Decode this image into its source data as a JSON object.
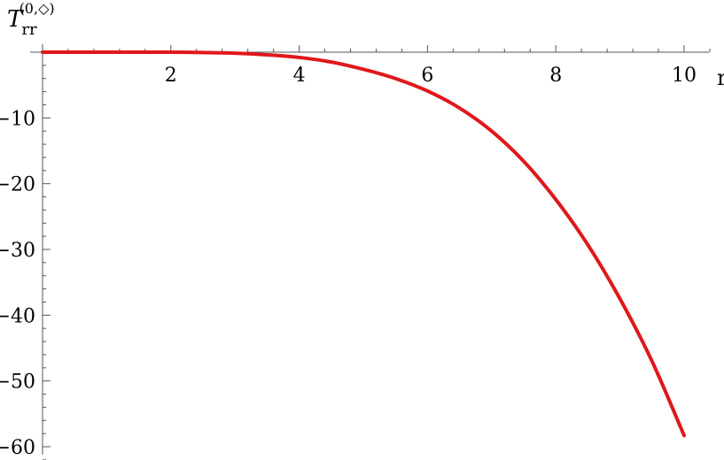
{
  "chart_data": {
    "type": "line",
    "title": "",
    "xlabel": "r",
    "ylabel": {
      "base": "T",
      "subscript": "rr",
      "superscript": "(0,◇)"
    },
    "xlim": [
      0,
      10
    ],
    "ylim": [
      -60,
      0
    ],
    "x_ticks": [
      2,
      4,
      6,
      8,
      10
    ],
    "y_ticks": [
      -10,
      -20,
      -30,
      -40,
      -50,
      -60
    ],
    "grid": false,
    "legend": "none",
    "series": [
      {
        "color": "#e0181b",
        "x": [
          0,
          0.5,
          1,
          1.5,
          2,
          2.5,
          3,
          3.5,
          4,
          4.5,
          5,
          5.5,
          6,
          6.5,
          7,
          7.5,
          8,
          8.5,
          9,
          9.5,
          10
        ],
        "y": [
          0,
          0,
          0,
          0,
          0,
          -0.05,
          -0.15,
          -0.4,
          -0.8,
          -1.5,
          -2.6,
          -4.0,
          -5.9,
          -8.5,
          -12.0,
          -16.6,
          -22.4,
          -29.3,
          -37.5,
          -47.0,
          -58.3
        ]
      }
    ]
  }
}
